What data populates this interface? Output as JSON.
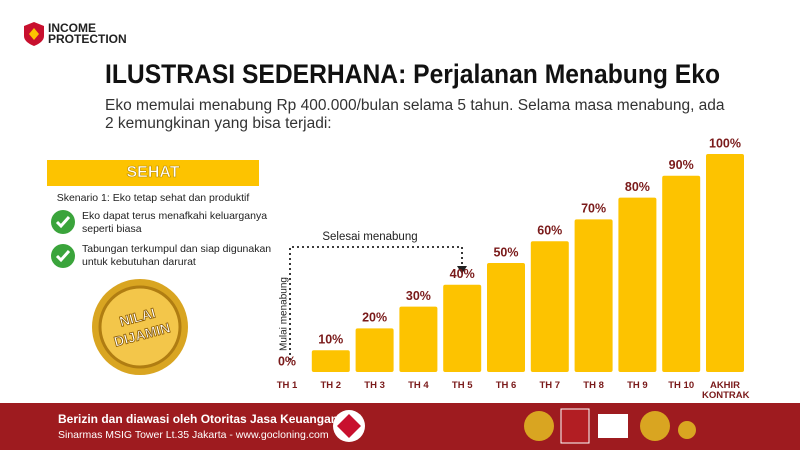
{
  "header": {
    "logo_line1": "INCOME",
    "logo_line2": "PROTECTION"
  },
  "title": "ILUSTRASI SEDERHANA: Perjalanan Menabung Eko",
  "subtitle": "Eko memulai menabung Rp 400.000/bulan selama 5 tahun. Selama masa menabung, ada 2 kemungkinan yang bisa terjadi:",
  "scenario": {
    "label": "SEHAT",
    "description": "Skenario 1: Eko tetap sehat dan produktif",
    "points": [
      "Eko dapat terus menafkahi keluarganya seperti biasa",
      "Tabungan terkumpul dan siap digunakan untuk kebutuhan darurat"
    ]
  },
  "badge": {
    "line1": "NILAI",
    "line2": "DIJAMIN"
  },
  "chart_data": {
    "type": "bar",
    "categories": [
      "TH 1",
      "TH 2",
      "TH 3",
      "TH 4",
      "TH 5",
      "TH 6",
      "TH 7",
      "TH 8",
      "TH 9",
      "TH 10",
      "AKHIR KONTRAK"
    ],
    "values": [
      0,
      10,
      20,
      30,
      40,
      50,
      60,
      70,
      80,
      90,
      100
    ],
    "value_labels": [
      "0%",
      "10%",
      "20%",
      "30%",
      "40%",
      "50%",
      "60%",
      "70%",
      "80%",
      "90%",
      "100%"
    ],
    "color": "#fdc300",
    "annotations": {
      "start": "Mulai menabung",
      "end": "Selesai menabung"
    }
  },
  "footer": {
    "line1": "Berizin dan diawasi oleh Otoritas Jasa Keuangan",
    "line2": "Sinarmas MSIG Tower Lt.35 Jakarta - www.gocloning.com"
  }
}
